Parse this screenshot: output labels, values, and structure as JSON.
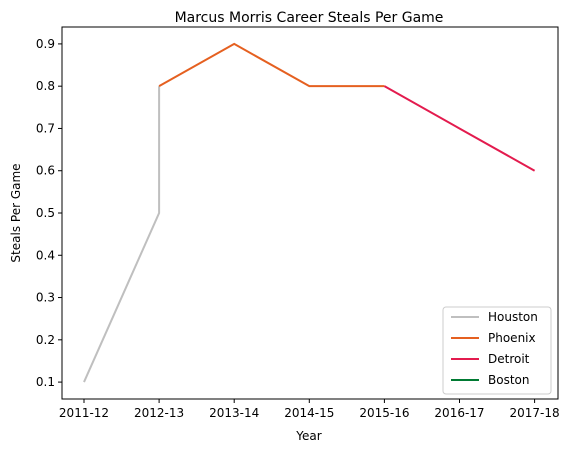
{
  "chart_data": {
    "type": "line",
    "title": "Marcus Morris  Career Steals Per Game",
    "xlabel": "Year",
    "ylabel": "Steals Per Game",
    "categories": [
      "2011-12",
      "2012-13",
      "2013-14",
      "2014-15",
      "2015-16",
      "2016-17",
      "2017-18"
    ],
    "yticks": [
      "0.1",
      "0.2",
      "0.3",
      "0.4",
      "0.5",
      "0.6",
      "0.7",
      "0.8",
      "0.9"
    ],
    "ylim": [
      0.06,
      0.94
    ],
    "grid": false,
    "legend_position": "bottom-right",
    "series": [
      {
        "name": "Houston",
        "color": "#bfbfbf",
        "points": [
          [
            "2011-12",
            0.1
          ],
          [
            "2012-13",
            0.5
          ],
          [
            "2012-13",
            0.8
          ]
        ]
      },
      {
        "name": "Phoenix",
        "color": "#e56020",
        "points": [
          [
            "2012-13",
            0.8
          ],
          [
            "2013-14",
            0.9
          ],
          [
            "2014-15",
            0.8
          ],
          [
            "2015-16",
            0.8
          ]
        ]
      },
      {
        "name": "Detroit",
        "color": "#e31b4e",
        "points": [
          [
            "2015-16",
            0.8
          ],
          [
            "2016-17",
            0.7
          ],
          [
            "2017-18",
            0.6
          ]
        ]
      },
      {
        "name": "Boston",
        "color": "#007a33",
        "points": []
      }
    ]
  }
}
